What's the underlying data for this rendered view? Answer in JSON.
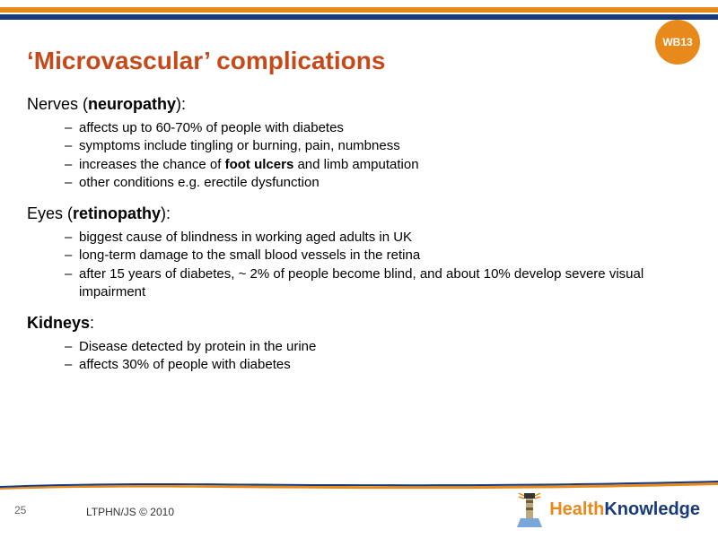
{
  "colors": {
    "title": "#c54a1a",
    "badge_bg": "#e8891b",
    "badge_text": "#ffffff",
    "stripe_orange": "#e8891b",
    "stripe_blue": "#163a7a",
    "logo_health": "#e8891b",
    "logo_knowledge": "#163a7a",
    "wave_orange": "#e8891b",
    "wave_blue": "#163a7a"
  },
  "badge": "WB13",
  "title": "‘Microvascular’ complications",
  "sections": [
    {
      "head_prefix": "Nerves (",
      "head_term": "neuropathy",
      "head_suffix": "):",
      "items": [
        {
          "text": "affects up to 60-70% of people with diabetes"
        },
        {
          "text": "symptoms include tingling or burning, pain, numbness"
        },
        {
          "html": "increases the chance of <span class=\"bold\">foot ulcers</span> and limb amputation"
        },
        {
          "text": "other conditions e.g. erectile dysfunction"
        }
      ]
    },
    {
      "head_prefix": "Eyes (",
      "head_term": "retinopathy",
      "head_suffix": "):",
      "items": [
        {
          "text": "biggest cause of blindness in working aged adults in UK"
        },
        {
          "text": "long-term damage to the small blood vessels in the retina"
        },
        {
          "text": "after 15 years of diabetes, ~ 2% of people become blind, and about 10% develop severe visual impairment"
        }
      ]
    },
    {
      "head_prefix": "",
      "head_term": "Kidneys",
      "head_suffix": ":",
      "items": [
        {
          "text": "Disease detected by protein in the urine"
        },
        {
          "text": "affects 30% of people with diabetes"
        }
      ]
    }
  ],
  "footer": {
    "slide_number": "25",
    "copyright": "LTPHN/JS © 2010",
    "logo_health": "Health",
    "logo_knowledge": "Knowledge"
  }
}
